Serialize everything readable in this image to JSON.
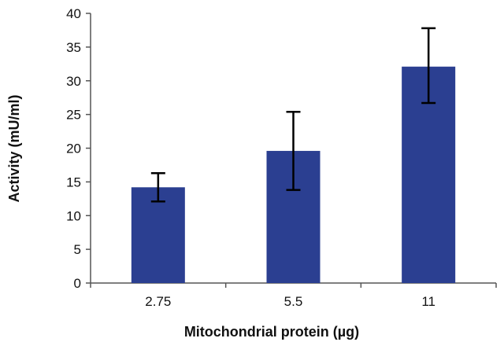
{
  "chart_data": {
    "type": "bar",
    "title": "",
    "xlabel": "Mitochondrial protein  (µg)",
    "ylabel": "Activity (mU/ml)",
    "categories": [
      "2.75",
      "5.5",
      "11"
    ],
    "values": [
      14.2,
      19.6,
      32.1
    ],
    "error_low": [
      12.1,
      13.8,
      26.7
    ],
    "error_high": [
      16.3,
      25.4,
      37.8
    ],
    "ylim": [
      0,
      40
    ],
    "yticks": [
      "0",
      "5",
      "10",
      "15",
      "20",
      "25",
      "30",
      "35",
      "40"
    ],
    "bar_color": "#2b3f91",
    "error_bar_color": "#000000",
    "grid": false,
    "legend": "none"
  }
}
